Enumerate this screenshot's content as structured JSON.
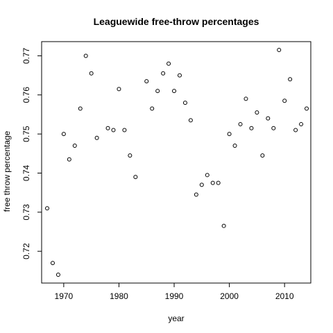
{
  "chart_data": {
    "type": "scatter",
    "title": "Leaguewide free-throw percentages",
    "xlabel": "year",
    "ylabel": "free throw percentage",
    "xlim": [
      1967,
      2014
    ],
    "ylim": [
      0.714,
      0.7715
    ],
    "xticks": [
      1970,
      1980,
      1990,
      2000,
      2010
    ],
    "yticks": [
      0.72,
      0.73,
      0.74,
      0.75,
      0.76,
      0.77
    ],
    "ytick_labels": [
      "0.72",
      "0.73",
      "0.74",
      "0.75",
      "0.76",
      "0.77"
    ],
    "grid": false,
    "x": [
      1967,
      1968,
      1969,
      1970,
      1971,
      1972,
      1973,
      1974,
      1975,
      1976,
      1977,
      1978,
      1979,
      1980,
      1981,
      1982,
      1983,
      1984,
      1985,
      1986,
      1987,
      1988,
      1989,
      1990,
      1991,
      1992,
      1993,
      1994,
      1995,
      1996,
      1997,
      1998,
      1999,
      2000,
      2001,
      2002,
      2003,
      2004,
      2005,
      2006,
      2007,
      2008,
      2009,
      2010,
      2011,
      2012,
      2013,
      2014
    ],
    "y": [
      0.731,
      0.717,
      0.714,
      0.75,
      0.7435,
      0.747,
      0.7565,
      0.77,
      0.7655,
      0.749,
      null,
      0.7515,
      0.751,
      0.7615,
      0.751,
      0.7445,
      0.739,
      null,
      0.7635,
      0.7565,
      0.761,
      0.7655,
      0.768,
      0.761,
      0.765,
      0.758,
      0.7535,
      0.7345,
      0.737,
      0.7395,
      0.7375,
      0.7375,
      0.7265,
      0.75,
      0.747,
      0.7525,
      0.759,
      0.7515,
      0.7555,
      0.7445,
      0.754,
      0.7515,
      0.7715,
      0.7585,
      0.764,
      0.751,
      0.7525,
      0.7565
    ]
  }
}
